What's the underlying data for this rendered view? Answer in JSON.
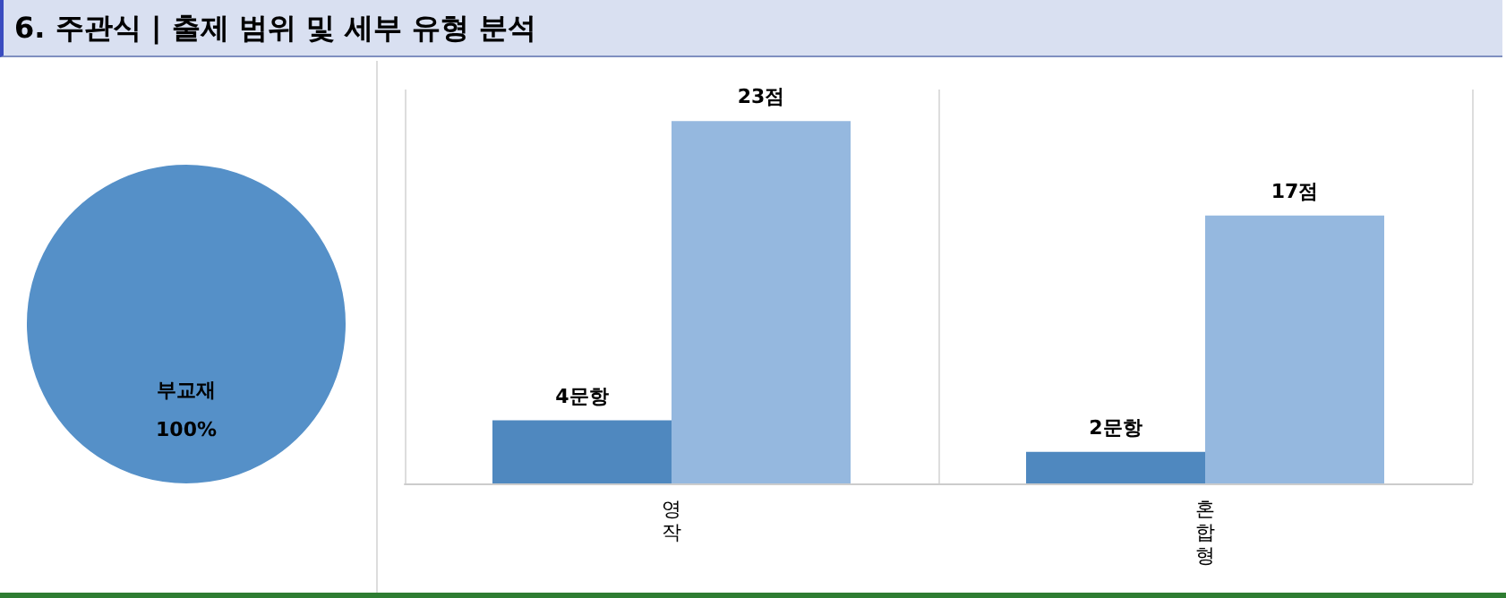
{
  "chart_data": [
    {
      "type": "pie",
      "title": "6. 주관식 | 출제 범위 및 세부 유형 분석",
      "categories": [
        "부교재"
      ],
      "values": [
        100
      ],
      "colors": [
        "#5590c8"
      ],
      "value_labels": [
        "100%"
      ],
      "legend": false
    },
    {
      "type": "bar",
      "categories": [
        "영작",
        "혼합형"
      ],
      "grid": "x",
      "legend": false,
      "series": [
        {
          "color": "#4f88bf",
          "values": [
            4,
            2
          ],
          "value_labels": [
            "4문항",
            "2문항"
          ]
        },
        {
          "color": "#95b8df",
          "values": [
            23,
            17
          ],
          "value_labels": [
            "23점",
            "17점"
          ]
        }
      ]
    }
  ]
}
